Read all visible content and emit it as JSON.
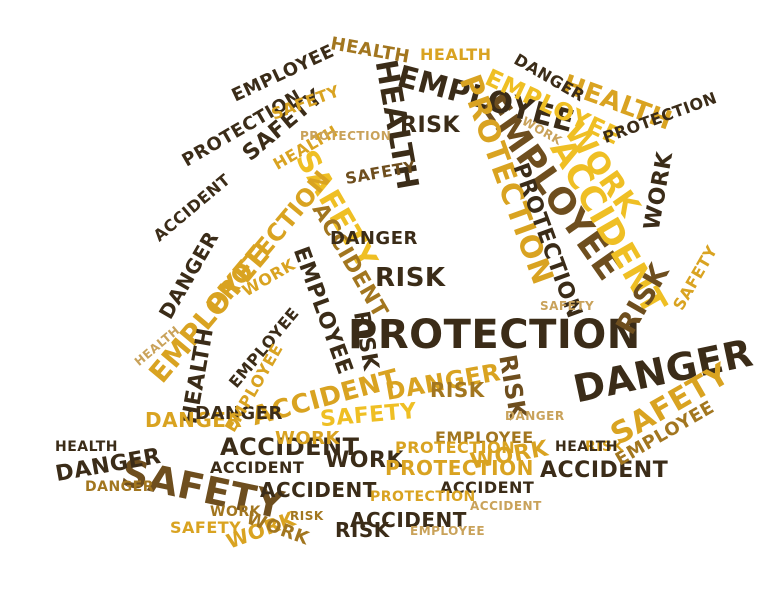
{
  "word_cloud": {
    "shape": "hard-hat",
    "colors": {
      "dark": "#3b2c18",
      "brown": "#6e4e1e",
      "bronze": "#a2761f",
      "gold": "#d9a321",
      "yellow": "#efbf24",
      "tan": "#c9a25a"
    },
    "words": [
      {
        "text": "PROTECTION",
        "color": "dark"
      },
      {
        "text": "DANGER",
        "color": "dark"
      },
      {
        "text": "SAFETY",
        "color": "brown"
      },
      {
        "text": "EMPLOYEE",
        "color": "brown"
      },
      {
        "text": "EMPLOYEE",
        "color": "dark"
      },
      {
        "text": "WORK",
        "color": "yellow"
      },
      {
        "text": "ACCIDENT",
        "color": "yellow"
      },
      {
        "text": "HEALTH",
        "color": "dark"
      },
      {
        "text": "SAFETY",
        "color": "yellow"
      },
      {
        "text": "SAFETY",
        "color": "gold"
      },
      {
        "text": "PROTECTION",
        "color": "gold"
      },
      {
        "text": "EMPLOYEE",
        "color": "gold"
      },
      {
        "text": "HEALTH",
        "color": "gold"
      },
      {
        "text": "RISK",
        "color": "brown"
      },
      {
        "text": "RISK",
        "color": "dark"
      },
      {
        "text": "ACCIDENT",
        "color": "dark"
      },
      {
        "text": "PROTECTION",
        "color": "gold"
      },
      {
        "text": "EMPLOYEE",
        "color": "dark"
      },
      {
        "text": "EMPLOYEE",
        "color": "yellow"
      },
      {
        "text": "PROTECTION",
        "color": "dark"
      },
      {
        "text": "ACCIDENT",
        "color": "gold"
      },
      {
        "text": "ACCIDENT",
        "color": "bronze"
      },
      {
        "text": "SAFETY",
        "color": "yellow"
      },
      {
        "text": "DANGER",
        "color": "gold"
      },
      {
        "text": "ACCIDENT",
        "color": "dark"
      },
      {
        "text": "WORK",
        "color": "dark"
      },
      {
        "text": "DANGER",
        "color": "dark"
      },
      {
        "text": "PROTECTION",
        "color": "gold"
      },
      {
        "text": "WORK",
        "color": "gold"
      },
      {
        "text": "RISK",
        "color": "brown"
      },
      {
        "text": "RISK",
        "color": "dark"
      },
      {
        "text": "DANGER",
        "color": "dark"
      },
      {
        "text": "WORK",
        "color": "dark"
      },
      {
        "text": "WORK",
        "color": "gold"
      },
      {
        "text": "HEALTH",
        "color": "dark"
      },
      {
        "text": "HEALTH",
        "color": "bronze"
      },
      {
        "text": "RISK",
        "color": "dark"
      },
      {
        "text": "RISK",
        "color": "bronze"
      },
      {
        "text": "EMPLOYEE",
        "color": "dark"
      },
      {
        "text": "SAFETY",
        "color": "dark"
      },
      {
        "text": "PROTECTION",
        "color": "dark"
      },
      {
        "text": "DANGER",
        "color": "gold"
      },
      {
        "text": "DANGER",
        "color": "dark"
      },
      {
        "text": "ACCIDENT",
        "color": "dark"
      },
      {
        "text": "SAFETY",
        "color": "gold"
      },
      {
        "text": "EMPLOYEE",
        "color": "bronze"
      },
      {
        "text": "ACCIDENT",
        "color": "dark"
      },
      {
        "text": "HEALTH",
        "color": "gold"
      },
      {
        "text": "WORK",
        "color": "gold"
      },
      {
        "text": "PROTECTION",
        "color": "dark"
      },
      {
        "text": "RISK",
        "color": "dark"
      },
      {
        "text": "EMPLOYEE",
        "color": "dark"
      },
      {
        "text": "WORK",
        "color": "bronze"
      },
      {
        "text": "SAFETY",
        "color": "gold"
      },
      {
        "text": "HEALTH",
        "color": "dark"
      },
      {
        "text": "DANGER",
        "color": "dark"
      },
      {
        "text": "ACCIDENT",
        "color": "dark"
      },
      {
        "text": "HEALTH",
        "color": "gold"
      },
      {
        "text": "WORK",
        "color": "gold"
      },
      {
        "text": "EMPLOYEE",
        "color": "bronze"
      },
      {
        "text": "PROTECTION",
        "color": "gold"
      },
      {
        "text": "SAFETY",
        "color": "brown"
      },
      {
        "text": "DANGER",
        "color": "dark"
      },
      {
        "text": "ACCIDENT",
        "color": "dark"
      },
      {
        "text": "RISK",
        "color": "gold"
      },
      {
        "text": "HEALTH",
        "color": "dark"
      },
      {
        "text": "WORK",
        "color": "bronze"
      },
      {
        "text": "EMPLOYEE",
        "color": "gold"
      },
      {
        "text": "SAFETY",
        "color": "gold"
      },
      {
        "text": "ACCIDENT",
        "color": "dark"
      },
      {
        "text": "DANGER",
        "color": "bronze"
      },
      {
        "text": "PROTECTION",
        "color": "gold"
      },
      {
        "text": "HEALTH",
        "color": "tan"
      },
      {
        "text": "RISK",
        "color": "bronze"
      },
      {
        "text": "WORK",
        "color": "tan"
      },
      {
        "text": "SAFETY",
        "color": "tan"
      },
      {
        "text": "EMPLOYEE",
        "color": "tan"
      },
      {
        "text": "ACCIDENT",
        "color": "tan"
      },
      {
        "text": "DANGER",
        "color": "tan"
      },
      {
        "text": "PROTECTION",
        "color": "tan"
      }
    ]
  }
}
